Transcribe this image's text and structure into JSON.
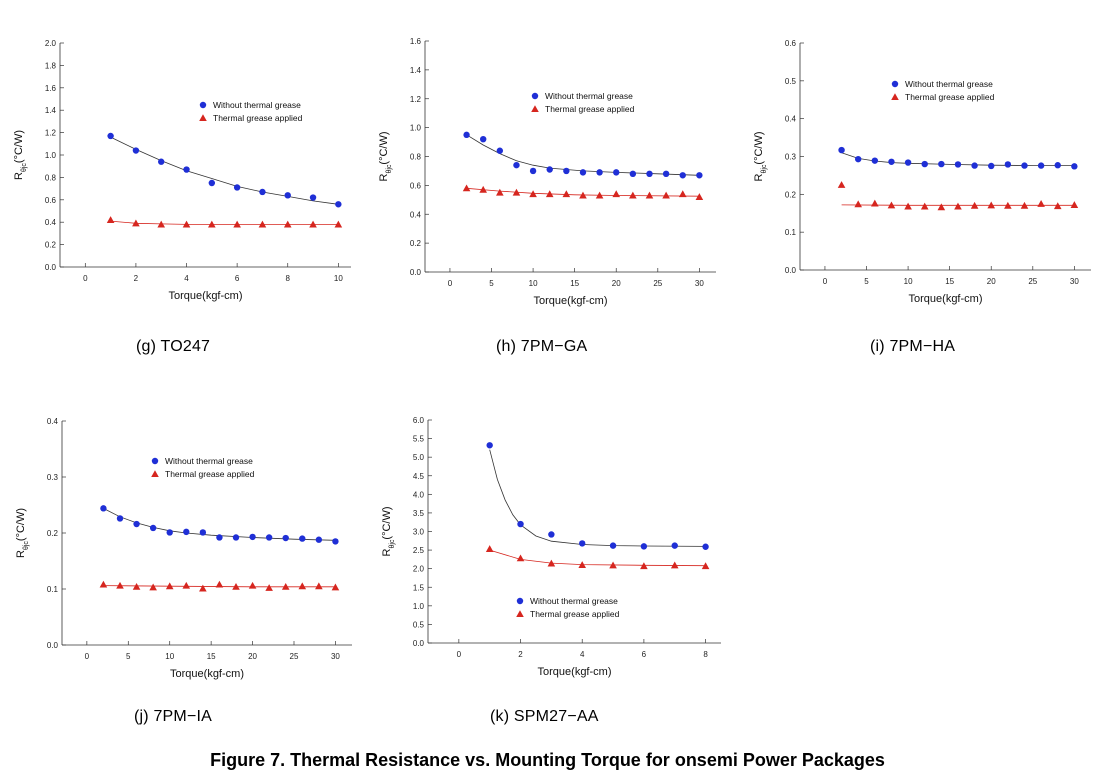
{
  "figure_title": "Figure 7. Thermal Resistance vs. Mounting Torque for onsemi Power Packages",
  "colors": {
    "without": "#1f2fd6",
    "applied": "#d6261f",
    "axis": "#333333"
  },
  "chart_data": [
    {
      "id": "g",
      "type": "scatter",
      "caption": "(g) TO247",
      "xlabel": "Torque(kgf-cm)",
      "ylabel_main": "R",
      "ylabel_sub": "θjc",
      "ylabel_unit": "(°C/W)",
      "xlim": [
        -1,
        10.5
      ],
      "ylim": [
        0,
        2.0
      ],
      "xticks": [
        0,
        2,
        4,
        6,
        8,
        10
      ],
      "xtick_labels": [
        "0",
        "2",
        "4",
        "6",
        "8",
        "10"
      ],
      "yticks": [
        0,
        0.2,
        0.4,
        0.6,
        0.8,
        1.0,
        1.2,
        1.4,
        1.6,
        1.8,
        2.0
      ],
      "ytick_labels": [
        "0.0",
        "0.2",
        "0.4",
        "0.6",
        "0.8",
        "1.0",
        "1.2",
        "1.4",
        "1.6",
        "1.8",
        "2.0"
      ],
      "legend": [
        "Without thermal grease",
        "Thermal grease applied"
      ],
      "legend_position": "upper-middle",
      "series": [
        {
          "name": "Without thermal grease",
          "marker": "circle",
          "x": [
            1,
            2,
            3,
            4,
            5,
            6,
            7,
            8,
            9,
            10
          ],
          "y": [
            1.17,
            1.04,
            0.94,
            0.87,
            0.75,
            0.71,
            0.67,
            0.64,
            0.62,
            0.56
          ],
          "fit": [
            [
              1,
              1.16
            ],
            [
              2,
              1.05
            ],
            [
              3,
              0.95
            ],
            [
              4,
              0.86
            ],
            [
              5,
              0.79
            ],
            [
              6,
              0.72
            ],
            [
              7,
              0.67
            ],
            [
              8,
              0.63
            ],
            [
              9,
              0.59
            ],
            [
              10,
              0.56
            ]
          ]
        },
        {
          "name": "Thermal grease applied",
          "marker": "triangle",
          "x": [
            1,
            2,
            3,
            4,
            5,
            6,
            7,
            8,
            9,
            10
          ],
          "y": [
            0.42,
            0.39,
            0.38,
            0.38,
            0.38,
            0.38,
            0.38,
            0.38,
            0.38,
            0.38
          ],
          "fit": [
            [
              1,
              0.41
            ],
            [
              2,
              0.39
            ],
            [
              3,
              0.385
            ],
            [
              4,
              0.38
            ],
            [
              6,
              0.38
            ],
            [
              10,
              0.38
            ]
          ]
        }
      ]
    },
    {
      "id": "h",
      "type": "scatter",
      "caption": "(h) 7PM−GA",
      "xlabel": "Torque(kgf-cm)",
      "ylabel_main": "R",
      "ylabel_sub": "θjc",
      "ylabel_unit": "(°C/W)",
      "xlim": [
        -3,
        32
      ],
      "ylim": [
        0,
        1.6
      ],
      "xticks": [
        0,
        5,
        10,
        15,
        20,
        25,
        30
      ],
      "xtick_labels": [
        "0",
        "5",
        "10",
        "15",
        "20",
        "25",
        "30"
      ],
      "yticks": [
        0,
        0.2,
        0.4,
        0.6,
        0.8,
        1.0,
        1.2,
        1.4,
        1.6
      ],
      "ytick_labels": [
        "0.0",
        "0.2",
        "0.4",
        "0.6",
        "0.8",
        "1.0",
        "1.2",
        "1.4",
        "1.6"
      ],
      "legend": [
        "Without thermal grease",
        "Thermal grease applied"
      ],
      "legend_position": "upper-middle",
      "series": [
        {
          "name": "Without thermal grease",
          "marker": "circle",
          "x": [
            2,
            4,
            6,
            8,
            10,
            12,
            14,
            16,
            18,
            20,
            22,
            24,
            26,
            28,
            30
          ],
          "y": [
            0.95,
            0.92,
            0.84,
            0.74,
            0.7,
            0.71,
            0.7,
            0.69,
            0.69,
            0.69,
            0.68,
            0.68,
            0.68,
            0.67,
            0.67
          ],
          "fit": [
            [
              2,
              0.95
            ],
            [
              4,
              0.88
            ],
            [
              6,
              0.82
            ],
            [
              8,
              0.77
            ],
            [
              10,
              0.74
            ],
            [
              12,
              0.72
            ],
            [
              14,
              0.71
            ],
            [
              16,
              0.7
            ],
            [
              20,
              0.69
            ],
            [
              25,
              0.68
            ],
            [
              30,
              0.67
            ]
          ]
        },
        {
          "name": "Thermal grease applied",
          "marker": "triangle",
          "x": [
            2,
            4,
            6,
            8,
            10,
            12,
            14,
            16,
            18,
            20,
            22,
            24,
            26,
            28,
            30
          ],
          "y": [
            0.58,
            0.57,
            0.55,
            0.55,
            0.54,
            0.54,
            0.54,
            0.53,
            0.53,
            0.54,
            0.53,
            0.53,
            0.53,
            0.54,
            0.52
          ],
          "fit": [
            [
              2,
              0.58
            ],
            [
              6,
              0.56
            ],
            [
              10,
              0.545
            ],
            [
              15,
              0.535
            ],
            [
              20,
              0.53
            ],
            [
              30,
              0.525
            ]
          ]
        }
      ]
    },
    {
      "id": "i",
      "type": "scatter",
      "caption": "(i) 7PM−HA",
      "xlabel": "Torque(kgf-cm)",
      "ylabel_main": "R",
      "ylabel_sub": "θjc",
      "ylabel_unit": "(°C/W)",
      "xlim": [
        -3,
        32
      ],
      "ylim": [
        0,
        0.6
      ],
      "xticks": [
        0,
        5,
        10,
        15,
        20,
        25,
        30
      ],
      "xtick_labels": [
        "0",
        "5",
        "10",
        "15",
        "20",
        "25",
        "30"
      ],
      "yticks": [
        0,
        0.1,
        0.2,
        0.3,
        0.4,
        0.5,
        0.6
      ],
      "ytick_labels": [
        "0.0",
        "0.1",
        "0.2",
        "0.3",
        "0.4",
        "0.5",
        "0.6"
      ],
      "legend": [
        "Without thermal grease",
        "Thermal grease applied"
      ],
      "legend_position": "upper-middle",
      "series": [
        {
          "name": "Without thermal grease",
          "marker": "circle",
          "x": [
            2,
            4,
            6,
            8,
            10,
            12,
            14,
            16,
            18,
            20,
            22,
            24,
            26,
            28,
            30
          ],
          "y": [
            0.317,
            0.293,
            0.289,
            0.286,
            0.284,
            0.28,
            0.28,
            0.279,
            0.276,
            0.275,
            0.279,
            0.276,
            0.276,
            0.277,
            0.274
          ],
          "fit": [
            [
              2,
              0.31
            ],
            [
              4,
              0.295
            ],
            [
              6,
              0.288
            ],
            [
              8,
              0.284
            ],
            [
              10,
              0.282
            ],
            [
              15,
              0.279
            ],
            [
              20,
              0.277
            ],
            [
              25,
              0.276
            ],
            [
              30,
              0.276
            ]
          ]
        },
        {
          "name": "Thermal grease applied",
          "marker": "triangle",
          "x": [
            2,
            4,
            6,
            8,
            10,
            12,
            14,
            16,
            18,
            20,
            22,
            24,
            26,
            28,
            30
          ],
          "y": [
            0.225,
            0.174,
            0.176,
            0.171,
            0.168,
            0.168,
            0.166,
            0.168,
            0.17,
            0.171,
            0.17,
            0.17,
            0.175,
            0.169,
            0.172
          ],
          "fit": [
            [
              2,
              0.172
            ],
            [
              10,
              0.171
            ],
            [
              20,
              0.171
            ],
            [
              30,
              0.171
            ]
          ]
        }
      ]
    },
    {
      "id": "j",
      "type": "scatter",
      "caption": "(j) 7PM−IA",
      "xlabel": "Torque(kgf-cm)",
      "ylabel_main": "R",
      "ylabel_sub": "θjc",
      "ylabel_unit": "(°C/W)",
      "xlim": [
        -3,
        32
      ],
      "ylim": [
        0,
        0.4
      ],
      "xticks": [
        0,
        5,
        10,
        15,
        20,
        25,
        30
      ],
      "xtick_labels": [
        "0",
        "5",
        "10",
        "15",
        "20",
        "25",
        "30"
      ],
      "yticks": [
        0,
        0.1,
        0.2,
        0.3,
        0.4
      ],
      "ytick_labels": [
        "0.0",
        "0.1",
        "0.2",
        "0.3",
        "0.4"
      ],
      "legend": [
        "Without thermal grease",
        "Thermal grease applied"
      ],
      "legend_position": "upper-middle",
      "series": [
        {
          "name": "Without thermal grease",
          "marker": "circle",
          "x": [
            2,
            4,
            6,
            8,
            10,
            12,
            14,
            16,
            18,
            20,
            22,
            24,
            26,
            28,
            30
          ],
          "y": [
            0.244,
            0.226,
            0.216,
            0.209,
            0.201,
            0.202,
            0.201,
            0.192,
            0.192,
            0.193,
            0.192,
            0.191,
            0.19,
            0.188,
            0.185
          ],
          "fit": [
            [
              2,
              0.244
            ],
            [
              4,
              0.229
            ],
            [
              6,
              0.218
            ],
            [
              8,
              0.21
            ],
            [
              10,
              0.204
            ],
            [
              12,
              0.2
            ],
            [
              15,
              0.196
            ],
            [
              20,
              0.192
            ],
            [
              25,
              0.189
            ],
            [
              30,
              0.187
            ]
          ]
        },
        {
          "name": "Thermal grease applied",
          "marker": "triangle",
          "x": [
            2,
            4,
            6,
            8,
            10,
            12,
            14,
            16,
            18,
            20,
            22,
            24,
            26,
            28,
            30
          ],
          "y": [
            0.108,
            0.106,
            0.104,
            0.103,
            0.105,
            0.106,
            0.101,
            0.108,
            0.104,
            0.106,
            0.102,
            0.104,
            0.105,
            0.105,
            0.103
          ],
          "fit": [
            [
              2,
              0.106
            ],
            [
              10,
              0.105
            ],
            [
              20,
              0.104
            ],
            [
              30,
              0.104
            ]
          ]
        }
      ]
    },
    {
      "id": "k",
      "type": "scatter",
      "caption": "(k) SPM27−AA",
      "xlabel": "Torque(kgf-cm)",
      "ylabel_main": "R",
      "ylabel_sub": "θjc",
      "ylabel_unit": "(°C/W)",
      "xlim": [
        -1,
        8.5
      ],
      "ylim": [
        0,
        6.0
      ],
      "xticks": [
        0,
        2,
        4,
        6,
        8
      ],
      "xtick_labels": [
        "0",
        "2",
        "4",
        "6",
        "8"
      ],
      "yticks": [
        0,
        0.5,
        1.0,
        1.5,
        2.0,
        2.5,
        3.0,
        3.5,
        4.0,
        4.5,
        5.0,
        5.5,
        6.0
      ],
      "ytick_labels": [
        "0.0",
        "0.5",
        "1.0",
        "1.5",
        "2.0",
        "2.5",
        "3.0",
        "3.5",
        "4.0",
        "4.5",
        "5.0",
        "5.5",
        "6.0"
      ],
      "legend": [
        "Without thermal grease",
        "Thermal grease applied"
      ],
      "legend_position": "lower-middle",
      "series": [
        {
          "name": "Without thermal grease",
          "marker": "circle",
          "x": [
            1,
            2,
            3,
            4,
            5,
            6,
            7,
            8
          ],
          "y": [
            5.32,
            3.2,
            2.92,
            2.68,
            2.62,
            2.6,
            2.62,
            2.59
          ],
          "fit": [
            [
              1,
              5.2
            ],
            [
              1.25,
              4.4
            ],
            [
              1.5,
              3.85
            ],
            [
              1.75,
              3.45
            ],
            [
              2,
              3.18
            ],
            [
              2.5,
              2.88
            ],
            [
              3,
              2.74
            ],
            [
              4,
              2.65
            ],
            [
              5,
              2.62
            ],
            [
              6,
              2.61
            ],
            [
              8,
              2.6
            ]
          ]
        },
        {
          "name": "Thermal grease applied",
          "marker": "triangle",
          "x": [
            1,
            2,
            3,
            4,
            5,
            6,
            7,
            8
          ],
          "y": [
            2.53,
            2.28,
            2.14,
            2.1,
            2.09,
            2.07,
            2.09,
            2.07
          ],
          "fit": [
            [
              1,
              2.5
            ],
            [
              2,
              2.25
            ],
            [
              3,
              2.15
            ],
            [
              4,
              2.11
            ],
            [
              6,
              2.09
            ],
            [
              8,
              2.08
            ]
          ]
        }
      ]
    }
  ]
}
